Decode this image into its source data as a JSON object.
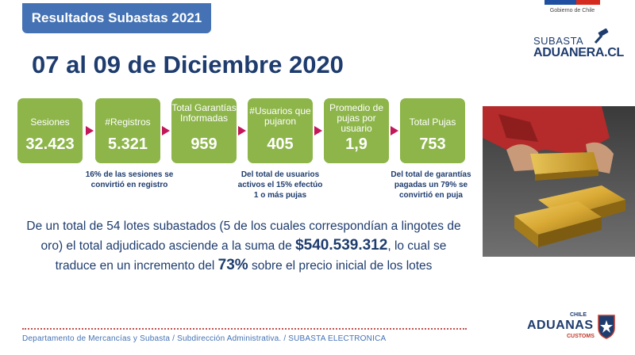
{
  "header": {
    "title": "Resultados Subastas 2021"
  },
  "gov_logo": {
    "text": "Gobierno de Chile"
  },
  "subasta_logo": {
    "line1": "SUBASTA",
    "line2": "ADUANERA.CL"
  },
  "main_title": "07 al 09 de Diciembre 2020",
  "stats": [
    {
      "label": "Sesiones",
      "value": "32.423"
    },
    {
      "label": "#Registros",
      "value": "5.321"
    },
    {
      "label": "Total Garantías Informadas",
      "value": "959"
    },
    {
      "label": "#Usuarios que pujaron",
      "value": "405"
    },
    {
      "label": "Promedio de pujas por usuario",
      "value": "1,9"
    },
    {
      "label": "Total Pujas",
      "value": "753"
    }
  ],
  "notes": {
    "registros": "16% de las sesiones se convirtió en registro",
    "usuarios": "Del total de usuarios activos el 15% efectúo 1 o más pujas",
    "pujas": "Del total de garantías pagadas un 79% se convirtió en puja"
  },
  "paragraph": {
    "part1": "De un total de 54 lotes subastados (5 de los cuales correspondían a lingotes de oro) el total adjudicado asciende a la suma de ",
    "amount": "$540.539.312",
    "part2": ", lo cual se traduce en un incremento del ",
    "percent": "73%",
    "part3": " sobre el precio inicial de los lotes"
  },
  "footer": {
    "text": "Departamento de Mercancías y Subasta / Subdirección Administrativa. / SUBASTA ELECTRONICA"
  },
  "aduanas_logo": {
    "chile": "CHILE",
    "word": "ADUANAS",
    "customs": "CUSTOMS"
  },
  "colors": {
    "accent": "#4472b4",
    "navy": "#1e3c6e",
    "green": "#8db54a",
    "arrow": "#c2185b"
  }
}
